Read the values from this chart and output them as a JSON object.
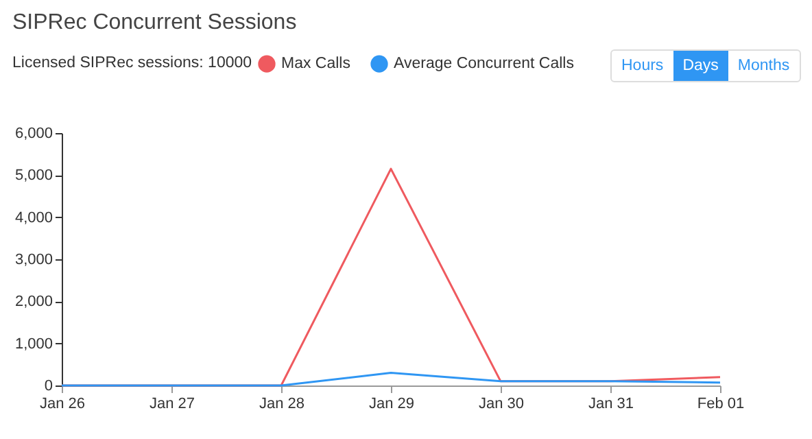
{
  "chart_data": {
    "type": "line",
    "title": "SIPRec Concurrent Sessions",
    "subtitle": "Licensed SIPRec sessions: 10000",
    "annotations": [
      "Hours",
      "Days",
      "Months"
    ],
    "categories": [
      "Jan 26",
      "Jan 27",
      "Jan 28",
      "Jan 29",
      "Jan 30",
      "Jan 31",
      "Feb 01"
    ],
    "series": [
      {
        "name": "Max Calls",
        "color": "#ef5a5f",
        "values": [
          0,
          0,
          0,
          5150,
          100,
          100,
          200
        ]
      },
      {
        "name": "Average Concurrent Calls",
        "color": "#2f96f3",
        "values": [
          0,
          0,
          0,
          300,
          100,
          100,
          70
        ]
      }
    ],
    "ylim": [
      0,
      6000
    ],
    "yticks": [
      0,
      {
        "value": 1000,
        "label": "1,000"
      },
      {
        "value": 2000,
        "label": "2,000"
      },
      {
        "value": 3000,
        "label": "3,000"
      },
      {
        "value": 4000,
        "label": "4,000"
      },
      {
        "value": 5000,
        "label": "5,000"
      },
      {
        "value": 6000,
        "label": "6,000"
      }
    ],
    "grid": false,
    "legend": "top",
    "marker": "none",
    "line_style": "solid"
  }
}
